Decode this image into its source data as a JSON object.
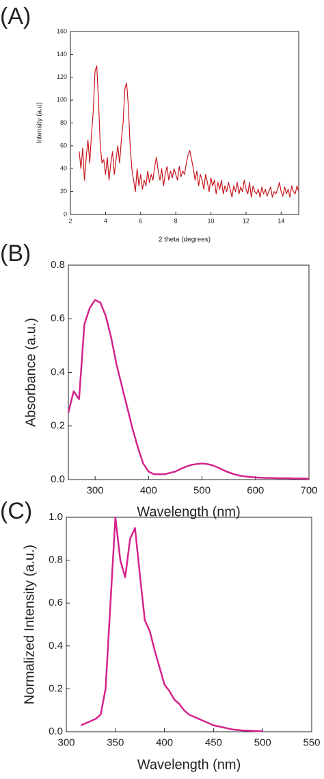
{
  "chart_data": [
    {
      "type": "line",
      "panel_label": "(A)",
      "xlabel": "2 theta (degrees)",
      "ylabel": "Intensity (a.u)",
      "color": "#c8161d",
      "xlim": [
        2,
        15
      ],
      "ylim": [
        0,
        160
      ],
      "xticks": [
        2,
        4,
        6,
        8,
        10,
        12,
        14
      ],
      "yticks": [
        0,
        20,
        40,
        60,
        80,
        100,
        120,
        140,
        160
      ],
      "x": [
        2.5,
        2.6,
        2.7,
        2.8,
        2.9,
        3.0,
        3.1,
        3.2,
        3.3,
        3.4,
        3.5,
        3.6,
        3.7,
        3.8,
        3.9,
        4.0,
        4.1,
        4.2,
        4.3,
        4.4,
        4.5,
        4.6,
        4.7,
        4.8,
        4.9,
        5.0,
        5.1,
        5.2,
        5.3,
        5.4,
        5.5,
        5.6,
        5.7,
        5.8,
        5.9,
        6.0,
        6.1,
        6.2,
        6.3,
        6.4,
        6.5,
        6.6,
        6.7,
        6.8,
        6.9,
        7.0,
        7.1,
        7.2,
        7.3,
        7.4,
        7.5,
        7.6,
        7.7,
        7.8,
        7.9,
        8.0,
        8.1,
        8.2,
        8.3,
        8.4,
        8.5,
        8.6,
        8.7,
        8.8,
        8.9,
        9.0,
        9.1,
        9.2,
        9.3,
        9.4,
        9.5,
        9.6,
        9.7,
        9.8,
        9.9,
        10.0,
        10.1,
        10.2,
        10.3,
        10.4,
        10.5,
        10.6,
        10.7,
        10.8,
        10.9,
        11.0,
        11.1,
        11.2,
        11.3,
        11.4,
        11.5,
        11.6,
        11.7,
        11.8,
        11.9,
        12.0,
        12.1,
        12.2,
        12.3,
        12.4,
        12.5,
        12.6,
        12.7,
        12.8,
        12.9,
        13.0,
        13.1,
        13.2,
        13.3,
        13.4,
        13.5,
        13.6,
        13.7,
        13.8,
        13.9,
        14.0,
        14.1,
        14.2,
        14.3,
        14.4,
        14.5,
        14.6,
        14.7,
        14.8,
        14.9,
        15.0
      ],
      "values": [
        55,
        40,
        58,
        30,
        50,
        65,
        45,
        70,
        90,
        125,
        130,
        100,
        60,
        45,
        48,
        35,
        50,
        30,
        45,
        55,
        35,
        48,
        60,
        45,
        65,
        80,
        110,
        115,
        95,
        60,
        40,
        30,
        20,
        40,
        25,
        35,
        22,
        30,
        25,
        38,
        28,
        35,
        30,
        42,
        50,
        38,
        30,
        40,
        25,
        35,
        42,
        30,
        38,
        32,
        40,
        35,
        30,
        42,
        33,
        38,
        35,
        45,
        52,
        56,
        48,
        40,
        30,
        38,
        25,
        35,
        30,
        22,
        35,
        28,
        20,
        32,
        25,
        30,
        18,
        28,
        22,
        30,
        18,
        25,
        20,
        28,
        22,
        15,
        25,
        20,
        28,
        18,
        24,
        20,
        30,
        22,
        18,
        28,
        15,
        25,
        20,
        18,
        22,
        15,
        24,
        18,
        22,
        16,
        20,
        24,
        15,
        20,
        18,
        22,
        28,
        20,
        16,
        24,
        18,
        22,
        15,
        25,
        20,
        18,
        25,
        20
      ]
    },
    {
      "type": "line",
      "panel_label": "(B)",
      "xlabel": "Wavelength (nm)",
      "ylabel": "Absorbance (a.u.)",
      "color": "#d4238c",
      "xlim": [
        250,
        700
      ],
      "ylim": [
        0,
        0.8
      ],
      "xticks": [
        300,
        400,
        500,
        600,
        700
      ],
      "yticks": [
        {
          "value": 0,
          "label": "0.0"
        },
        0.2,
        0.4,
        0.6,
        0.8
      ],
      "x": [
        250,
        260,
        270,
        280,
        290,
        300,
        310,
        320,
        330,
        340,
        350,
        360,
        370,
        380,
        390,
        400,
        410,
        420,
        430,
        440,
        450,
        460,
        470,
        480,
        490,
        500,
        510,
        520,
        530,
        540,
        550,
        560,
        570,
        580,
        590,
        600,
        610,
        620,
        630,
        640,
        650,
        660,
        670,
        680,
        690,
        700
      ],
      "values": [
        0.25,
        0.33,
        0.3,
        0.58,
        0.64,
        0.67,
        0.66,
        0.61,
        0.53,
        0.43,
        0.35,
        0.27,
        0.19,
        0.12,
        0.06,
        0.03,
        0.02,
        0.02,
        0.02,
        0.025,
        0.03,
        0.04,
        0.048,
        0.055,
        0.058,
        0.06,
        0.058,
        0.053,
        0.045,
        0.035,
        0.027,
        0.02,
        0.015,
        0.012,
        0.01,
        0.008,
        0.007,
        0.006,
        0.006,
        0.005,
        0.005,
        0.005,
        0.004,
        0.004,
        0.004,
        0.003
      ]
    },
    {
      "type": "line",
      "panel_label": "(C)",
      "xlabel": "Wavelength (nm)",
      "ylabel": "Normalized Intensity (a.u.)",
      "color": "#d4238c",
      "xlim": [
        300,
        550
      ],
      "ylim": [
        0,
        1
      ],
      "xticks": [
        300,
        350,
        400,
        450,
        500,
        550
      ],
      "yticks": [
        {
          "value": 0,
          "label": "0.0"
        },
        0.2,
        0.4,
        0.6,
        0.8,
        {
          "value": 1,
          "label": "1.0"
        }
      ],
      "x": [
        315,
        320,
        325,
        330,
        335,
        340,
        345,
        350,
        355,
        360,
        365,
        370,
        375,
        380,
        385,
        390,
        395,
        400,
        405,
        410,
        415,
        420,
        425,
        430,
        435,
        440,
        445,
        450,
        455,
        460,
        465,
        470,
        475,
        480,
        485,
        490,
        495,
        500
      ],
      "values": [
        0.03,
        0.04,
        0.05,
        0.06,
        0.08,
        0.2,
        0.6,
        1.0,
        0.8,
        0.72,
        0.9,
        0.95,
        0.73,
        0.52,
        0.47,
        0.38,
        0.3,
        0.22,
        0.19,
        0.15,
        0.13,
        0.1,
        0.08,
        0.07,
        0.06,
        0.05,
        0.04,
        0.03,
        0.025,
        0.02,
        0.015,
        0.01,
        0.008,
        0.006,
        0.005,
        0.004,
        0.003,
        0.002
      ]
    }
  ]
}
